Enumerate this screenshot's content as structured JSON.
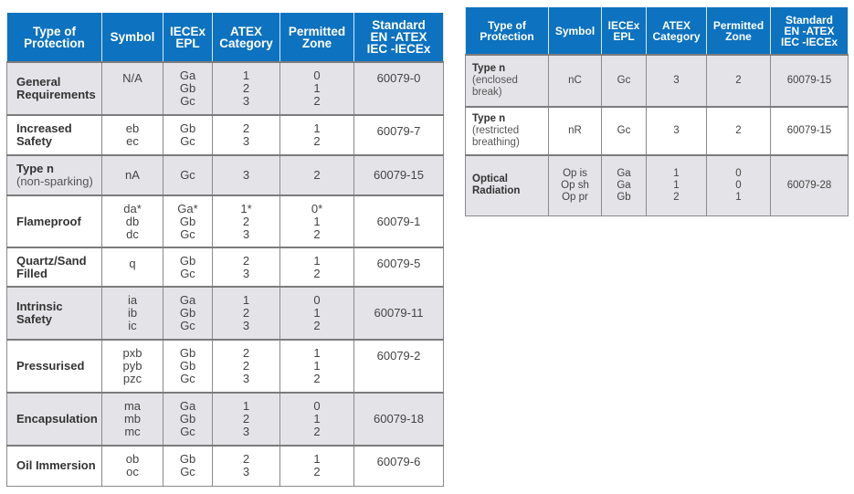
{
  "headers": [
    "Type of\nProtection",
    "Symbol",
    "IECEx\nEPL",
    "ATEX\nCategory",
    "Permitted\nZone",
    "Standard\nEN -ATEX\nIEC -IECEx"
  ],
  "left_table": {
    "rows": [
      {
        "name": "General\nRequirements",
        "sub": "",
        "symbol": "N/A",
        "epl": "Ga\nGb\nGc",
        "category": "1\n2\n3",
        "zone": "0\n1\n2",
        "standard": "60079-0"
      },
      {
        "name": "Increased\nSafety",
        "sub": "",
        "symbol": "eb\nec",
        "epl": "Gb\nGc",
        "category": "2\n3",
        "zone": "1\n2",
        "standard": "60079-7"
      },
      {
        "name": "Type n",
        "sub": "(non-sparking)",
        "symbol": "nA",
        "epl": "Gc",
        "category": "3",
        "zone": "2",
        "standard": "60079-15"
      },
      {
        "name": "Flameproof",
        "sub": "",
        "symbol": "da*\ndb\ndc",
        "epl": "Ga*\nGb\nGc",
        "category": "1*\n2\n3",
        "zone": "0*\n1\n2",
        "standard": "60079-1"
      },
      {
        "name": "Quartz/Sand\nFilled",
        "sub": "",
        "symbol": "q",
        "epl": "Gb\nGc",
        "category": "2\n3",
        "zone": "1\n2",
        "standard": "60079-5"
      },
      {
        "name": "Intrinsic\nSafety",
        "sub": "",
        "symbol": "ia\nib\nic",
        "epl": "Ga\nGb\nGc",
        "category": "1\n2\n3",
        "zone": "0\n1\n2",
        "standard": "60079-11"
      },
      {
        "name": "Pressurised",
        "sub": "",
        "symbol": "pxb\npyb\npzc",
        "epl": "Gb\nGb\nGc",
        "category": "2\n2\n3",
        "zone": "1\n1\n2",
        "standard": "60079-2"
      },
      {
        "name": "Encapsulation",
        "sub": "",
        "symbol": "ma\nmb\nmc",
        "epl": "Ga\nGb\nGc",
        "category": "1\n2\n3",
        "zone": "0\n1\n2",
        "standard": "60079-18"
      },
      {
        "name": "Oil Immersion",
        "sub": "",
        "symbol": "ob\noc",
        "epl": "Gb\nGc",
        "category": "2\n3",
        "zone": "1\n2",
        "standard": "60079-6"
      }
    ]
  },
  "right_table": {
    "rows": [
      {
        "name": "Type n",
        "sub": "(enclosed\nbreak)",
        "symbol": "nC",
        "epl": "Gc",
        "category": "3",
        "zone": "2",
        "standard": "60079-15"
      },
      {
        "name": "Type n",
        "sub": "(restricted\nbreathing)",
        "symbol": "nR",
        "epl": "Gc",
        "category": "3",
        "zone": "2",
        "standard": "60079-15"
      },
      {
        "name": "Optical\nRadiation",
        "sub": "",
        "symbol": "Op is\nOp sh\nOp pr",
        "epl": "Ga\nGa\nGb",
        "category": "1\n1\n2",
        "zone": "0\n0\n1",
        "standard": "60079-28"
      }
    ]
  },
  "colors": {
    "header_bg": "#0d72bf",
    "row_grey": "#e4e4e8"
  }
}
